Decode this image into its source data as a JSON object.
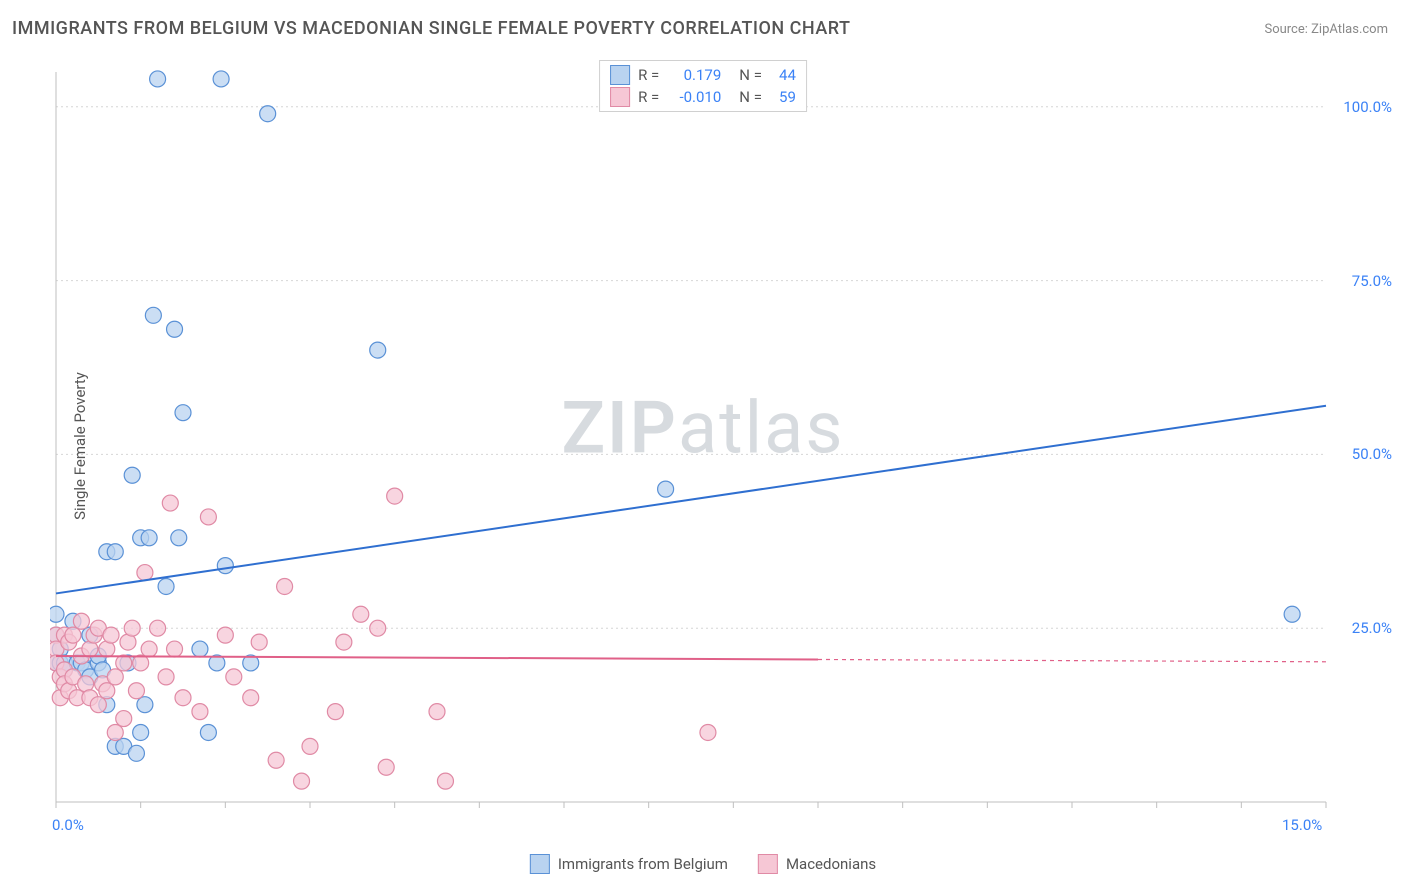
{
  "title": "IMMIGRANTS FROM BELGIUM VS MACEDONIAN SINGLE FEMALE POVERTY CORRELATION CHART",
  "source": "Source: ZipAtlas.com",
  "ylabel": "Single Female Poverty",
  "watermark_zip": "ZIP",
  "watermark_atlas": "atlas",
  "chart": {
    "type": "scatter",
    "xlim": [
      0,
      15
    ],
    "ylim": [
      0,
      105
    ],
    "xticks": [
      {
        "v": 0,
        "label": "0.0%"
      },
      {
        "v": 15,
        "label": "15.0%"
      }
    ],
    "yticks": [
      {
        "v": 25,
        "label": "25.0%"
      },
      {
        "v": 50,
        "label": "50.0%"
      },
      {
        "v": 75,
        "label": "75.0%"
      },
      {
        "v": 100,
        "label": "100.0%"
      }
    ],
    "grid_color": "#d6d6d6",
    "axis_color": "#bfbfbf",
    "background_color": "#ffffff",
    "marker_radius": 8,
    "marker_stroke_width": 1.2,
    "trend_line_width": 2,
    "series": [
      {
        "name": "Immigrants from Belgium",
        "fill": "#b9d3f0",
        "stroke": "#5a91d6",
        "trend_stroke": "#2f6fd0",
        "trend": {
          "x1": 0,
          "y1": 30,
          "x2": 15,
          "y2": 57
        },
        "points": [
          [
            0.0,
            27
          ],
          [
            0.0,
            24
          ],
          [
            0.0,
            20
          ],
          [
            0.05,
            22
          ],
          [
            0.05,
            20
          ],
          [
            0.1,
            20
          ],
          [
            0.1,
            19
          ],
          [
            0.2,
            26
          ],
          [
            0.25,
            20
          ],
          [
            0.3,
            20
          ],
          [
            0.35,
            19
          ],
          [
            0.4,
            18
          ],
          [
            0.4,
            24
          ],
          [
            0.5,
            20
          ],
          [
            0.5,
            21
          ],
          [
            0.55,
            19
          ],
          [
            0.6,
            36
          ],
          [
            0.6,
            14
          ],
          [
            0.7,
            36
          ],
          [
            0.7,
            8
          ],
          [
            0.8,
            8
          ],
          [
            0.85,
            20
          ],
          [
            0.9,
            47
          ],
          [
            0.95,
            7
          ],
          [
            1.0,
            38
          ],
          [
            1.0,
            10
          ],
          [
            1.05,
            14
          ],
          [
            1.1,
            38
          ],
          [
            1.15,
            70
          ],
          [
            1.2,
            104
          ],
          [
            1.3,
            31
          ],
          [
            1.4,
            68
          ],
          [
            1.45,
            38
          ],
          [
            1.5,
            56
          ],
          [
            1.7,
            22
          ],
          [
            1.8,
            10
          ],
          [
            1.9,
            20
          ],
          [
            1.95,
            104
          ],
          [
            2.0,
            34
          ],
          [
            2.3,
            20
          ],
          [
            2.5,
            99
          ],
          [
            3.8,
            65
          ],
          [
            7.2,
            45
          ],
          [
            14.6,
            27
          ]
        ]
      },
      {
        "name": "Macedonians",
        "fill": "#f6c7d5",
        "stroke": "#e08aa5",
        "trend_stroke": "#e06088",
        "trend": {
          "x1": 0,
          "y1": 21,
          "x2": 9,
          "y2": 20.5
        },
        "trend_dash_after": 9,
        "trend_dash_to": 15,
        "points": [
          [
            0.0,
            24
          ],
          [
            0.0,
            22
          ],
          [
            0.0,
            20
          ],
          [
            0.05,
            15
          ],
          [
            0.05,
            18
          ],
          [
            0.1,
            19
          ],
          [
            0.1,
            24
          ],
          [
            0.1,
            17
          ],
          [
            0.15,
            16
          ],
          [
            0.15,
            23
          ],
          [
            0.2,
            24
          ],
          [
            0.2,
            18
          ],
          [
            0.25,
            15
          ],
          [
            0.3,
            21
          ],
          [
            0.3,
            26
          ],
          [
            0.35,
            17
          ],
          [
            0.4,
            15
          ],
          [
            0.4,
            22
          ],
          [
            0.45,
            24
          ],
          [
            0.5,
            25
          ],
          [
            0.5,
            14
          ],
          [
            0.55,
            17
          ],
          [
            0.6,
            22
          ],
          [
            0.6,
            16
          ],
          [
            0.65,
            24
          ],
          [
            0.7,
            18
          ],
          [
            0.7,
            10
          ],
          [
            0.8,
            20
          ],
          [
            0.8,
            12
          ],
          [
            0.85,
            23
          ],
          [
            0.9,
            25
          ],
          [
            0.95,
            16
          ],
          [
            1.0,
            20
          ],
          [
            1.05,
            33
          ],
          [
            1.1,
            22
          ],
          [
            1.2,
            25
          ],
          [
            1.3,
            18
          ],
          [
            1.35,
            43
          ],
          [
            1.4,
            22
          ],
          [
            1.5,
            15
          ],
          [
            1.7,
            13
          ],
          [
            1.8,
            41
          ],
          [
            2.0,
            24
          ],
          [
            2.1,
            18
          ],
          [
            2.3,
            15
          ],
          [
            2.4,
            23
          ],
          [
            2.6,
            6
          ],
          [
            2.7,
            31
          ],
          [
            2.9,
            3
          ],
          [
            3.0,
            8
          ],
          [
            3.3,
            13
          ],
          [
            3.4,
            23
          ],
          [
            3.6,
            27
          ],
          [
            3.8,
            25
          ],
          [
            3.9,
            5
          ],
          [
            4.0,
            44
          ],
          [
            4.5,
            13
          ],
          [
            4.6,
            3
          ],
          [
            7.7,
            10
          ]
        ]
      }
    ]
  },
  "legend_top": [
    {
      "swatch_fill": "#b9d3f0",
      "swatch_stroke": "#5a91d6",
      "r_label": "R =",
      "r_val": "0.179",
      "n_label": "N =",
      "n_val": "44"
    },
    {
      "swatch_fill": "#f6c7d5",
      "swatch_stroke": "#e08aa5",
      "r_label": "R =",
      "r_val": "-0.010",
      "n_label": "N =",
      "n_val": "59"
    }
  ],
  "legend_bottom": [
    {
      "swatch_fill": "#b9d3f0",
      "swatch_stroke": "#5a91d6",
      "label": "Immigrants from Belgium"
    },
    {
      "swatch_fill": "#f6c7d5",
      "swatch_stroke": "#e08aa5",
      "label": "Macedonians"
    }
  ]
}
